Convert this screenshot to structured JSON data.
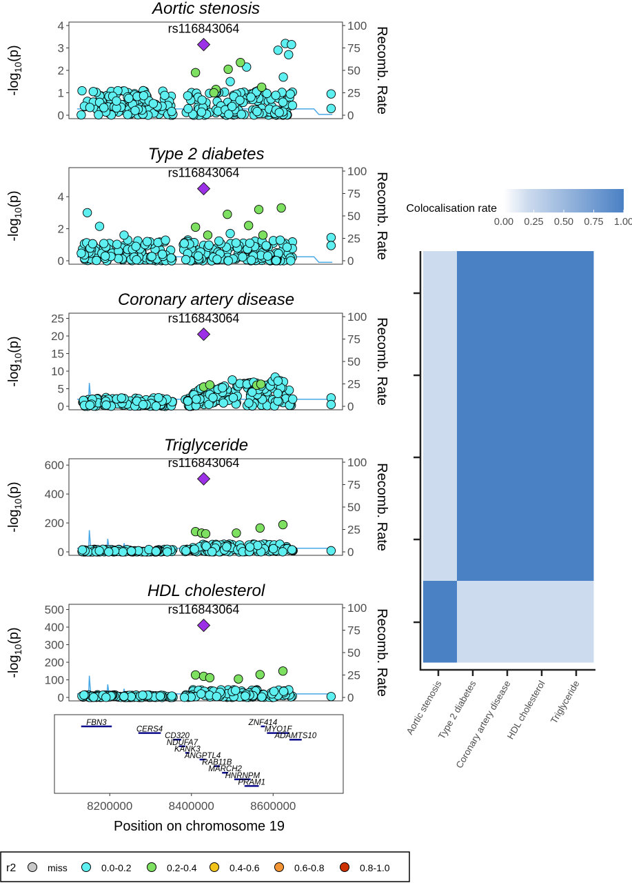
{
  "colors": {
    "panel_border": "#333333",
    "point_low": "#5ef0f0",
    "point_mid": "#7ee060",
    "lead": "#9b30e6",
    "recomb_line": "#4aa8e6",
    "gene_line": "#0a0a8a",
    "heat_low": "#cddbee",
    "heat_high": "#4a80c4"
  },
  "locus_plots": [
    {
      "title": "Aortic stenosis",
      "lead_label": "rs116843064",
      "ylabel_main": "-log",
      "ylabel_sub": "10",
      "ylabel_end": "(p)",
      "y2label": "Recomb. Rate",
      "yticks": [
        "0",
        "1",
        "2",
        "3",
        "4"
      ],
      "y2ticks": [
        "0",
        "25",
        "50",
        "75",
        "100"
      ],
      "ymax": 4,
      "lead_y": 3.15,
      "green": [
        [
          8410000,
          1.9
        ],
        [
          8460000,
          1.15
        ],
        [
          8490000,
          2.05
        ],
        [
          8520000,
          2.35
        ],
        [
          8572000,
          1.25
        ],
        [
          8455000,
          1.0
        ]
      ],
      "high": [
        [
          8612000,
          2.9
        ],
        [
          8630000,
          3.2
        ],
        [
          8638000,
          2.7
        ],
        [
          8645000,
          3.15
        ],
        [
          8625000,
          1.7
        ],
        [
          8742000,
          0.95
        ],
        [
          8742000,
          0.3
        ],
        [
          8495000,
          1.5
        ],
        [
          8535000,
          2.15
        ]
      ],
      "recomb_flat": 0.28,
      "seed": 11
    },
    {
      "title": "Type 2 diabetes",
      "lead_label": "rs116843064",
      "ylabel_main": "-log",
      "ylabel_sub": "10",
      "ylabel_end": "(p)",
      "y2label": "Recomb. Rate",
      "yticks": [
        "0",
        "2",
        "4"
      ],
      "y2ticks": [
        "0",
        "25",
        "50",
        "75",
        "100"
      ],
      "ymax": 5.6,
      "lead_y": 4.5,
      "green": [
        [
          8410000,
          2.1
        ],
        [
          8440000,
          1.6
        ],
        [
          8488000,
          2.9
        ],
        [
          8540000,
          2.2
        ],
        [
          8565000,
          3.2
        ],
        [
          8620000,
          3.3
        ],
        [
          8575000,
          1.6
        ]
      ],
      "high": [
        [
          8145000,
          3.0
        ],
        [
          8175000,
          2.15
        ],
        [
          8235000,
          1.6
        ],
        [
          8742000,
          1.45
        ],
        [
          8742000,
          0.95
        ],
        [
          8495000,
          1.7
        ],
        [
          8543000,
          1.1
        ]
      ],
      "recomb_flat": 0.25,
      "seed": 23
    },
    {
      "title": "Coronary artery disease",
      "lead_label": "rs116843064",
      "ylabel_main": "-log",
      "ylabel_sub": "10",
      "ylabel_end": "(p)",
      "y2label": "Recomb. Rate",
      "yticks": [
        "0",
        "5",
        "10",
        "15",
        "20",
        "25"
      ],
      "y2ticks": [
        "0",
        "25",
        "50",
        "75",
        "100"
      ],
      "ymax": 25.5,
      "lead_y": 20.5,
      "green": [
        [
          8430000,
          5.5
        ],
        [
          8445000,
          6.1
        ],
        [
          8560000,
          6.0
        ],
        [
          8570000,
          6.3
        ]
      ],
      "high": [
        [
          8500000,
          7.5
        ],
        [
          8605000,
          8.3
        ],
        [
          8612000,
          7.2
        ],
        [
          8742000,
          2.4
        ],
        [
          8742000,
          0.5
        ]
      ],
      "recomb_flat": 2.0,
      "seed": 37
    },
    {
      "title": "Triglyceride",
      "lead_label": "rs116843064",
      "ylabel_main": "-log",
      "ylabel_sub": "10",
      "ylabel_end": "(p)",
      "y2label": "Recomb. Rate",
      "yticks": [
        "0",
        "200",
        "400",
        "600"
      ],
      "y2ticks": [
        "0",
        "25",
        "50",
        "75",
        "100"
      ],
      "ymax": 620,
      "lead_y": 505,
      "green": [
        [
          8410000,
          140
        ],
        [
          8425000,
          130
        ],
        [
          8435000,
          125
        ],
        [
          8510000,
          130
        ],
        [
          8568000,
          165
        ],
        [
          8624000,
          188
        ]
      ],
      "high": [
        [
          8742000,
          8
        ]
      ],
      "recomb_flat": 25,
      "seed": 41
    },
    {
      "title": "HDL cholesterol",
      "lead_label": "rs116843064",
      "ylabel_main": "-log",
      "ylabel_sub": "10",
      "ylabel_end": "(p)",
      "y2label": "Recomb. Rate",
      "yticks": [
        "0",
        "100",
        "200",
        "300",
        "400",
        "500"
      ],
      "y2ticks": [
        "0",
        "25",
        "50",
        "75",
        "100"
      ],
      "ymax": 510,
      "lead_y": 410,
      "green": [
        [
          8410000,
          128
        ],
        [
          8430000,
          120
        ],
        [
          8445000,
          112
        ],
        [
          8515000,
          105
        ],
        [
          8568000,
          130
        ],
        [
          8624000,
          150
        ]
      ],
      "high": [
        [
          8742000,
          5
        ]
      ],
      "recomb_flat": 20,
      "seed": 53
    }
  ],
  "genes": [
    {
      "name": "FBN3",
      "x0": 8130000,
      "x1": 8205000,
      "row": 0
    },
    {
      "name": "CERS4",
      "x0": 8270000,
      "x1": 8325000,
      "row": 1
    },
    {
      "name": "CD320",
      "x0": 8355000,
      "x1": 8375000,
      "row": 2
    },
    {
      "name": "NDUFA7",
      "x0": 8370000,
      "x1": 8385000,
      "row": 3
    },
    {
      "name": "KANK3",
      "x0": 8385000,
      "x1": 8395000,
      "row": 4
    },
    {
      "name": "ANGPTL4",
      "x0": 8420000,
      "x1": 8435000,
      "row": 5
    },
    {
      "name": "RAB11B",
      "x0": 8455000,
      "x1": 8470000,
      "row": 6
    },
    {
      "name": "MARCH2",
      "x0": 8475000,
      "x1": 8490000,
      "row": 7
    },
    {
      "name": "HNRNPM",
      "x0": 8505000,
      "x1": 8545000,
      "row": 8
    },
    {
      "name": "PRAM1",
      "x0": 8530000,
      "x1": 8565000,
      "row": 9
    },
    {
      "name": "ZNF414",
      "x0": 8570000,
      "x1": 8580000,
      "row": 0
    },
    {
      "name": "MYO1F",
      "x0": 8585000,
      "x1": 8640000,
      "row": 1
    },
    {
      "name": "ADAMTS10",
      "x0": 8640000,
      "x1": 8670000,
      "row": 2
    }
  ],
  "x_axis": {
    "ticks": [
      "8200000",
      "8400000",
      "8600000"
    ],
    "tick_values": [
      8200000,
      8400000,
      8600000
    ],
    "xmin": 8100000,
    "xmax": 8770000,
    "lead_x": 8430000,
    "label": "Position on chromosome 19"
  },
  "legend": {
    "title": "r2",
    "items": [
      {
        "label": "miss",
        "color": "#c8c8c8"
      },
      {
        "label": "0.0-0.2",
        "color": "#5ef0f0"
      },
      {
        "label": "0.2-0.4",
        "color": "#7ee060"
      },
      {
        "label": "0.4-0.6",
        "color": "#f2c41a"
      },
      {
        "label": "0.6-0.8",
        "color": "#f29434"
      },
      {
        "label": "0.8-1.0",
        "color": "#cc3300"
      }
    ]
  },
  "chart_data": {
    "type": "heatmap",
    "title": "",
    "colorbar_label": "Colocalisation rate",
    "colorbar_ticks": [
      "0.00",
      "0.25",
      "0.50",
      "0.75",
      "1.00"
    ],
    "colorbar_range": [
      0,
      1
    ],
    "x_categories": [
      "Aortic stenosis",
      "Type 2 diabetes",
      "Coronary artery disease",
      "HDL cholesterol",
      "Triglyceride"
    ],
    "y_rows": 5,
    "values": [
      [
        0.2,
        1,
        1,
        1,
        1
      ],
      [
        0.2,
        1,
        1,
        1,
        1
      ],
      [
        0.2,
        1,
        1,
        1,
        1
      ],
      [
        0.2,
        1,
        1,
        1,
        1
      ],
      [
        1,
        0.2,
        0.2,
        0.2,
        0.2
      ]
    ]
  }
}
